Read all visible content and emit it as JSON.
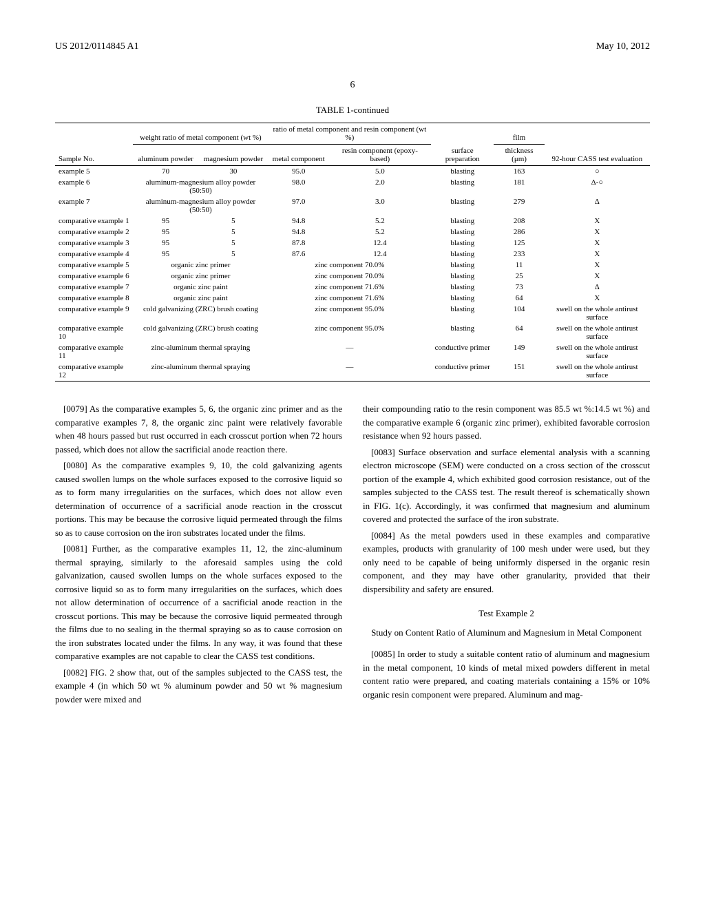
{
  "header": {
    "pub_number": "US 2012/0114845 A1",
    "pub_date": "May 10, 2012",
    "page_number": "6"
  },
  "table": {
    "title": "TABLE 1-continued",
    "group_headers": {
      "weight_ratio": "weight ratio of metal component (wt %)",
      "ratio_metal_resin": "ratio of metal component and resin component (wt %)",
      "film": "film"
    },
    "headers": {
      "sample": "Sample No.",
      "al": "aluminum powder",
      "mg": "magnesium powder",
      "metal": "metal component",
      "resin": "resin component (epoxy-based)",
      "surface": "surface preparation",
      "thickness": "thickness (μm)",
      "eval": "92-hour CASS test evaluation"
    },
    "rows": [
      {
        "sample": "example 5",
        "al": "70",
        "mg": "30",
        "metal": "95.0",
        "resin": "5.0",
        "surface": "blasting",
        "thickness": "163",
        "eval": "○"
      },
      {
        "sample": "example 6",
        "al": "aluminum-magnesium alloy powder (50:50)",
        "mg": "",
        "metal": "98.0",
        "resin": "2.0",
        "surface": "blasting",
        "thickness": "181",
        "eval": "Δ-○",
        "span": true
      },
      {
        "sample": "example 7",
        "al": "aluminum-magnesium alloy powder (50:50)",
        "mg": "",
        "metal": "97.0",
        "resin": "3.0",
        "surface": "blasting",
        "thickness": "279",
        "eval": "Δ",
        "span": true
      },
      {
        "sample": "comparative example 1",
        "al": "95",
        "mg": "5",
        "metal": "94.8",
        "resin": "5.2",
        "surface": "blasting",
        "thickness": "208",
        "eval": "X"
      },
      {
        "sample": "comparative example 2",
        "al": "95",
        "mg": "5",
        "metal": "94.8",
        "resin": "5.2",
        "surface": "blasting",
        "thickness": "286",
        "eval": "X"
      },
      {
        "sample": "comparative example 3",
        "al": "95",
        "mg": "5",
        "metal": "87.8",
        "resin": "12.4",
        "surface": "blasting",
        "thickness": "125",
        "eval": "X"
      },
      {
        "sample": "comparative example 4",
        "al": "95",
        "mg": "5",
        "metal": "87.6",
        "resin": "12.4",
        "surface": "blasting",
        "thickness": "233",
        "eval": "X"
      },
      {
        "sample": "comparative example 5",
        "al": "organic zinc primer",
        "mg": "",
        "metal": "zinc component 70.0%",
        "resin": "",
        "surface": "blasting",
        "thickness": "11",
        "eval": "X",
        "span": true,
        "span2": true
      },
      {
        "sample": "comparative example 6",
        "al": "organic zinc primer",
        "mg": "",
        "metal": "zinc component 70.0%",
        "resin": "",
        "surface": "blasting",
        "thickness": "25",
        "eval": "X",
        "span": true,
        "span2": true
      },
      {
        "sample": "comparative example 7",
        "al": "organic zinc paint",
        "mg": "",
        "metal": "zinc component 71.6%",
        "resin": "",
        "surface": "blasting",
        "thickness": "73",
        "eval": "Δ",
        "span": true,
        "span2": true
      },
      {
        "sample": "comparative example 8",
        "al": "organic zinc paint",
        "mg": "",
        "metal": "zinc component 71.6%",
        "resin": "",
        "surface": "blasting",
        "thickness": "64",
        "eval": "X",
        "span": true,
        "span2": true
      },
      {
        "sample": "comparative example 9",
        "al": "cold galvanizing (ZRC) brush coating",
        "mg": "",
        "metal": "zinc component 95.0%",
        "resin": "",
        "surface": "blasting",
        "thickness": "104",
        "eval": "swell on the whole antirust surface",
        "span": true,
        "span2": true
      },
      {
        "sample": "comparative example 10",
        "al": "cold galvanizing (ZRC) brush coating",
        "mg": "",
        "metal": "zinc component 95.0%",
        "resin": "",
        "surface": "blasting",
        "thickness": "64",
        "eval": "swell on the whole antirust surface",
        "span": true,
        "span2": true
      },
      {
        "sample": "comparative example 11",
        "al": "zinc-aluminum thermal spraying",
        "mg": "",
        "metal": "—",
        "resin": "",
        "surface": "conductive primer",
        "thickness": "149",
        "eval": "swell on the whole antirust surface",
        "span": true,
        "span2": true
      },
      {
        "sample": "comparative example 12",
        "al": "zinc-aluminum thermal spraying",
        "mg": "",
        "metal": "—",
        "resin": "",
        "surface": "conductive primer",
        "thickness": "151",
        "eval": "swell on the whole antirust surface",
        "span": true,
        "span2": true
      }
    ]
  },
  "body": {
    "left": [
      {
        "num": "[0079]",
        "text": "As the comparative examples 5, 6, the organic zinc primer and as the comparative examples 7, 8, the organic zinc paint were relatively favorable when 48 hours passed but rust occurred in each crosscut portion when 72 hours passed, which does not allow the sacrificial anode reaction there."
      },
      {
        "num": "[0080]",
        "text": "As the comparative examples 9, 10, the cold galvanizing agents caused swollen lumps on the whole surfaces exposed to the corrosive liquid so as to form many irregularities on the surfaces, which does not allow even determination of occurrence of a sacrificial anode reaction in the crosscut portions. This may be because the corrosive liquid permeated through the films so as to cause corrosion on the iron substrates located under the films."
      },
      {
        "num": "[0081]",
        "text": "Further, as the comparative examples 11, 12, the zinc-aluminum thermal spraying, similarly to the aforesaid samples using the cold galvanization, caused swollen lumps on the whole surfaces exposed to the corrosive liquid so as to form many irregularities on the surfaces, which does not allow determination of occurrence of a sacrificial anode reaction in the crosscut portions. This may be because the corrosive liquid permeated through the films due to no sealing in the thermal spraying so as to cause corrosion on the iron substrates located under the films. In any way, it was found that these comparative examples are not capable to clear the CASS test conditions."
      },
      {
        "num": "[0082]",
        "text": "FIG. 2 show that, out of the samples subjected to the CASS test, the example 4 (in which 50 wt % aluminum powder and 50 wt % magnesium powder were mixed and"
      }
    ],
    "right_intro": "their compounding ratio to the resin component was 85.5 wt %:14.5 wt %) and the comparative example 6 (organic zinc primer), exhibited favorable corrosion resistance when 92 hours passed.",
    "right": [
      {
        "num": "[0083]",
        "text": "Surface observation and surface elemental analysis with a scanning electron microscope (SEM) were conducted on a cross section of the crosscut portion of the example 4, which exhibited good corrosion resistance, out of the samples subjected to the CASS test. The result thereof is schematically shown in FIG. 1(c). Accordingly, it was confirmed that magnesium and aluminum covered and protected the surface of the iron substrate."
      },
      {
        "num": "[0084]",
        "text": "As the metal powders used in these examples and comparative examples, products with granularity of 100 mesh under were used, but they only need to be capable of being uniformly dispersed in the organic resin component, and they may have other granularity, provided that their dispersibility and safety are ensured."
      }
    ],
    "test_title": "Test Example 2",
    "test_subtitle": "Study on Content Ratio of Aluminum and Magnesium in Metal Component",
    "right2": [
      {
        "num": "[0085]",
        "text": "In order to study a suitable content ratio of aluminum and magnesium in the metal component, 10 kinds of metal mixed powders different in metal content ratio were prepared, and coating materials containing a 15% or 10% organic resin component were prepared. Aluminum and mag-"
      }
    ]
  }
}
